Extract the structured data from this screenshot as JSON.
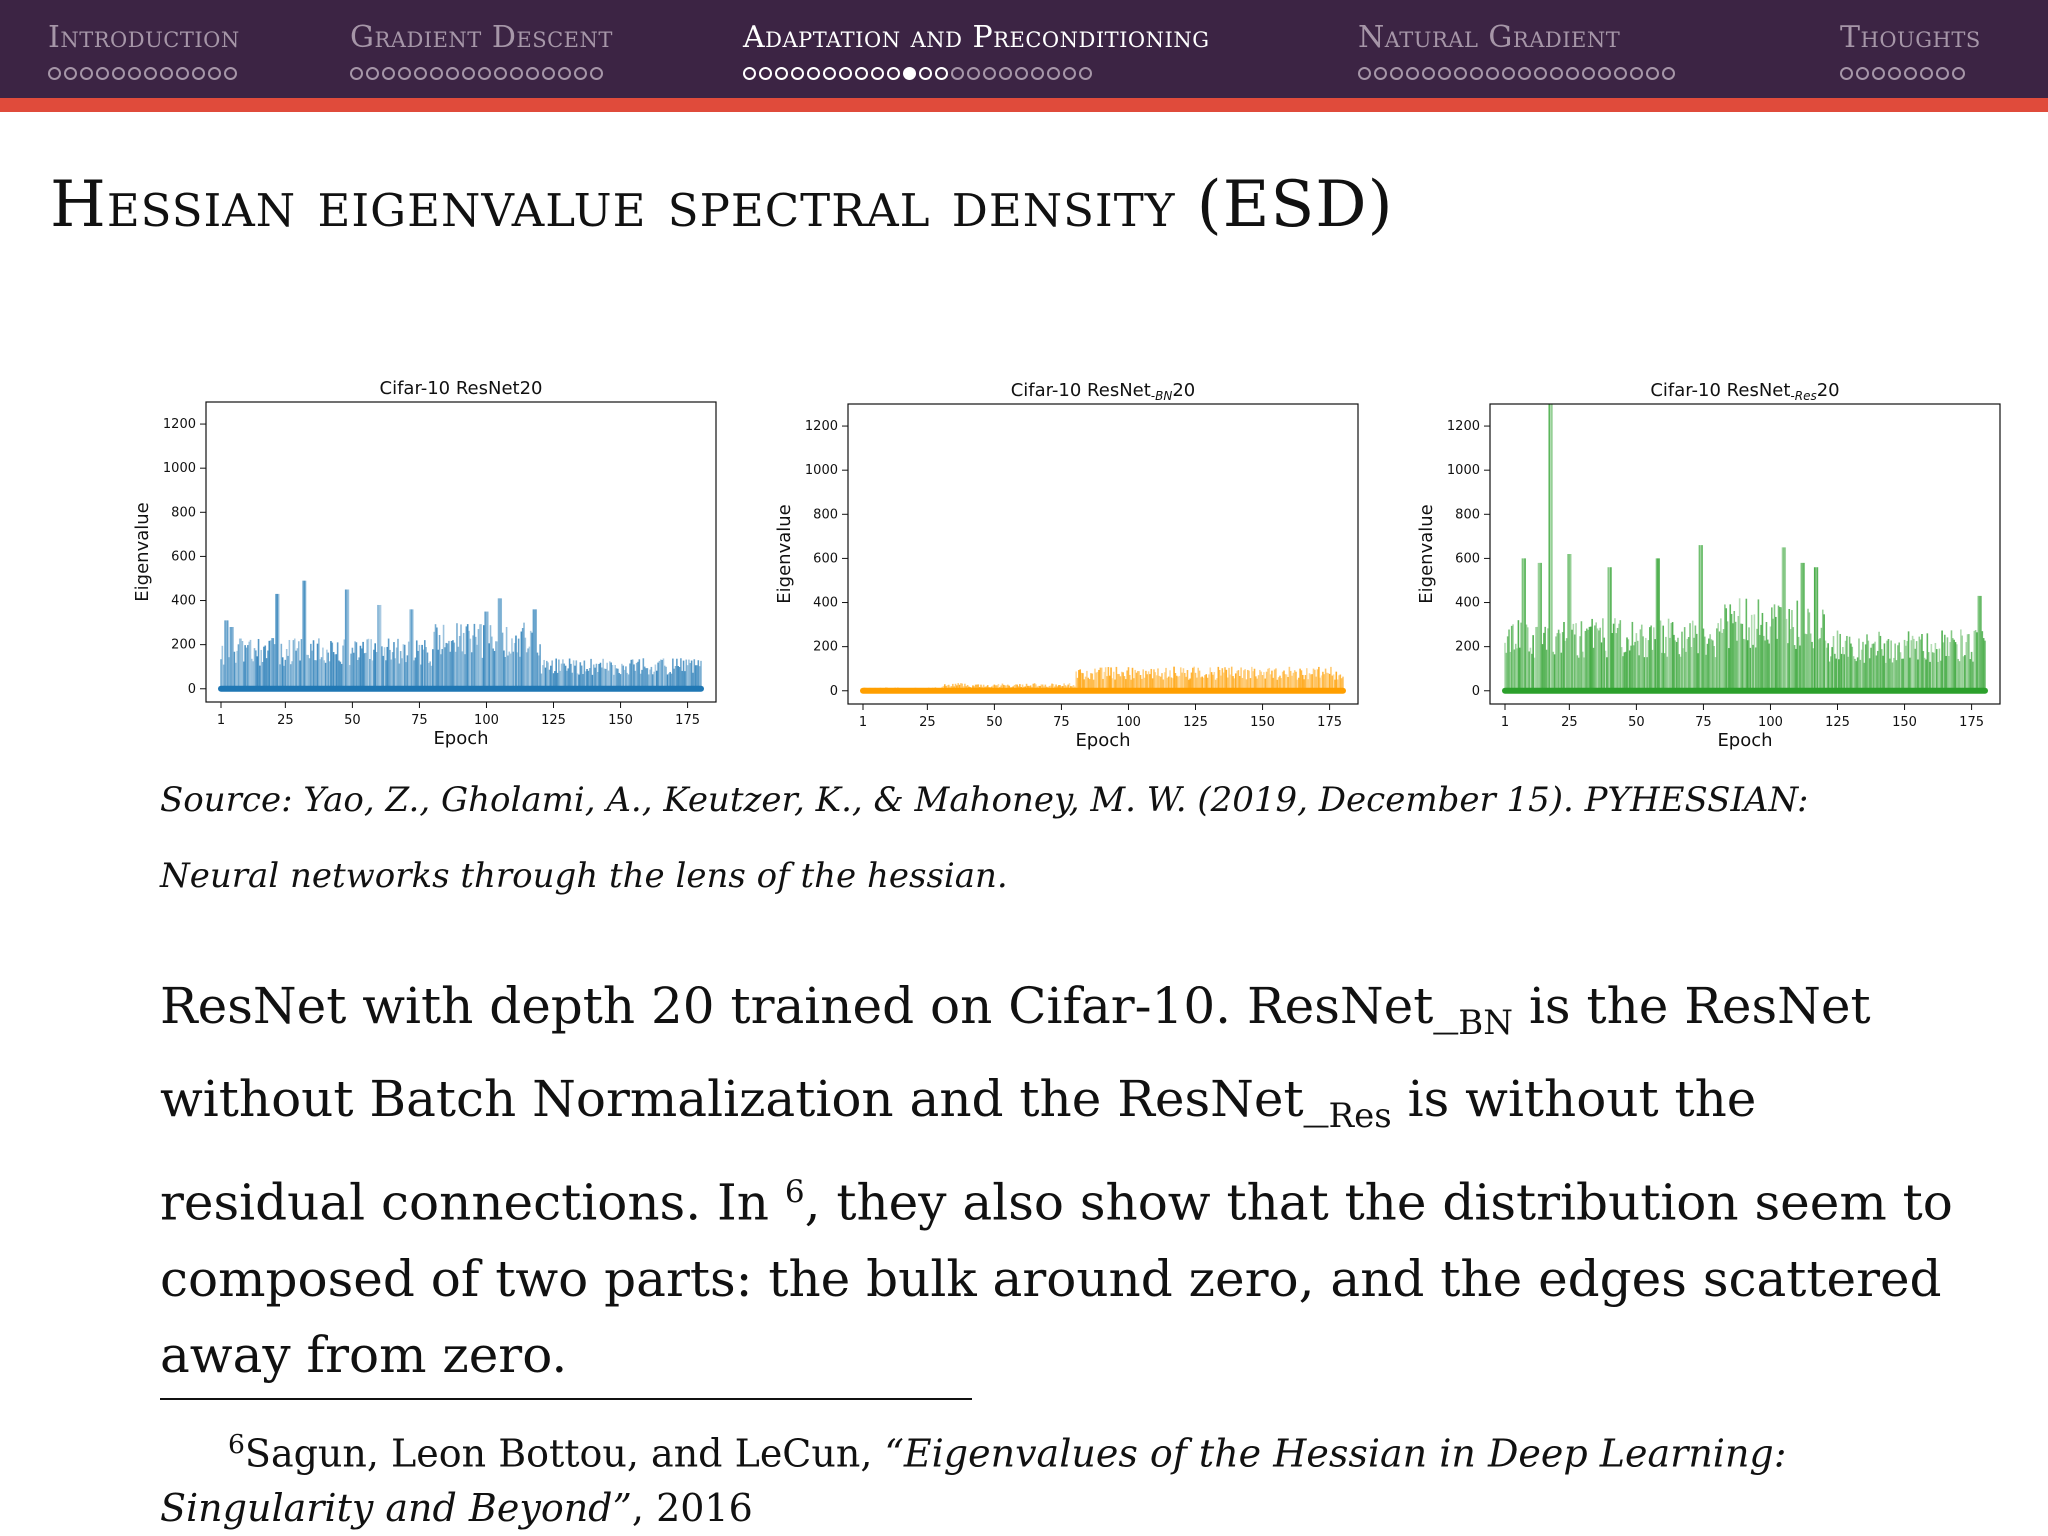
{
  "nav": {
    "sections": [
      {
        "title": "Introduction",
        "dots": 12,
        "active": false,
        "seen": 0,
        "current": -1
      },
      {
        "title": "Gradient Descent",
        "dots": 16,
        "active": false,
        "seen": 0,
        "current": -1
      },
      {
        "title": "Adaptation and Preconditioning",
        "dots": 22,
        "active": true,
        "seen": 13,
        "current": 10
      },
      {
        "title": "Natural Gradient",
        "dots": 20,
        "active": false,
        "seen": 0,
        "current": -1
      },
      {
        "title": "Thoughts",
        "dots": 8,
        "active": false,
        "seen": 0,
        "current": -1
      }
    ],
    "colors": {
      "bar": "#3c2444",
      "accent": "#e04b3b",
      "inactive": "#a696a8",
      "active": "#ffffff"
    }
  },
  "slide": {
    "title": "Hessian eigenvalue spectral density (ESD)",
    "source": "Source: Yao, Z., Gholami, A., Keutzer, K., & Mahoney, M. W. (2019, December 15). PYHESSIAN: Neural networks through the lens of the hessian.",
    "body": {
      "p1": "ResNet with depth 20 trained on Cifar-10. ResNet_",
      "sub1": "BN",
      "p2": " is the ResNet without Batch Normalization and the ResNet_",
      "sub2": "Res",
      "p3": " is without the residual connections. In ",
      "ref": "6",
      "p4": ", they also show that the distribution seem to composed of two parts: the bulk around zero, and the edges scattered away from zero."
    },
    "footnote": {
      "mark": "6",
      "authors": "Sagun, Leon Bottou, and LeCun, ",
      "title": "“Eigenvalues of the Hessian in Deep Learning: Singularity and Beyond”",
      "year": ", 2016"
    }
  },
  "chart_data": [
    {
      "type": "area",
      "title": "Cifar-10 ResNet20",
      "title_base": "Cifar-10 ResNet20",
      "title_sub": "",
      "title_tail": "",
      "xlabel": "Epoch",
      "ylabel": "Eigenvalue",
      "xlim": [
        1,
        180
      ],
      "ylim": [
        -60,
        1300
      ],
      "xticks": [
        1,
        25,
        50,
        75,
        100,
        125,
        150,
        175
      ],
      "yticks": [
        0,
        200,
        400,
        600,
        800,
        1000,
        1200
      ],
      "color": "#1f77b4",
      "grid": false,
      "segments": [
        {
          "from": 1,
          "to": 80,
          "envelope": 230
        },
        {
          "from": 80,
          "to": 120,
          "envelope": 300
        },
        {
          "from": 120,
          "to": 180,
          "envelope": 140
        }
      ],
      "peaks": [
        [
          3,
          310
        ],
        [
          5,
          280
        ],
        [
          22,
          430
        ],
        [
          32,
          490
        ],
        [
          48,
          450
        ],
        [
          60,
          380
        ],
        [
          72,
          360
        ],
        [
          100,
          350
        ],
        [
          105,
          410
        ],
        [
          118,
          360
        ]
      ]
    },
    {
      "type": "area",
      "title": "Cifar-10 ResNet_BN20",
      "title_base": "Cifar-10 ResNet",
      "title_sub": "-BN",
      "title_tail": "20",
      "xlabel": "Epoch",
      "ylabel": "Eigenvalue",
      "xlim": [
        1,
        180
      ],
      "ylim": [
        -60,
        1300
      ],
      "xticks": [
        1,
        25,
        50,
        75,
        100,
        125,
        150,
        175
      ],
      "yticks": [
        0,
        200,
        400,
        600,
        800,
        1000,
        1200
      ],
      "color": "#ff9f00",
      "grid": false,
      "segments": [
        {
          "from": 1,
          "to": 30,
          "envelope": 15
        },
        {
          "from": 30,
          "to": 80,
          "envelope": 35
        },
        {
          "from": 80,
          "to": 180,
          "envelope": 110
        }
      ],
      "peaks": []
    },
    {
      "type": "area",
      "title": "Cifar-10 ResNet_Res20",
      "title_base": "Cifar-10 ResNet",
      "title_sub": "-Res",
      "title_tail": "20",
      "xlabel": "Epoch",
      "ylabel": "Eigenvalue",
      "xlim": [
        1,
        180
      ],
      "ylim": [
        -60,
        1300
      ],
      "xticks": [
        1,
        25,
        50,
        75,
        100,
        125,
        150,
        175
      ],
      "yticks": [
        0,
        200,
        400,
        600,
        800,
        1000,
        1200
      ],
      "color": "#2ca02c",
      "grid": false,
      "segments": [
        {
          "from": 1,
          "to": 80,
          "envelope": 330
        },
        {
          "from": 80,
          "to": 120,
          "envelope": 420
        },
        {
          "from": 120,
          "to": 180,
          "envelope": 280
        }
      ],
      "peaks": [
        [
          8,
          600
        ],
        [
          14,
          580
        ],
        [
          18,
          1300
        ],
        [
          25,
          620
        ],
        [
          40,
          560
        ],
        [
          58,
          600
        ],
        [
          74,
          660
        ],
        [
          105,
          650
        ],
        [
          112,
          580
        ],
        [
          117,
          560
        ],
        [
          178,
          430
        ]
      ]
    }
  ]
}
